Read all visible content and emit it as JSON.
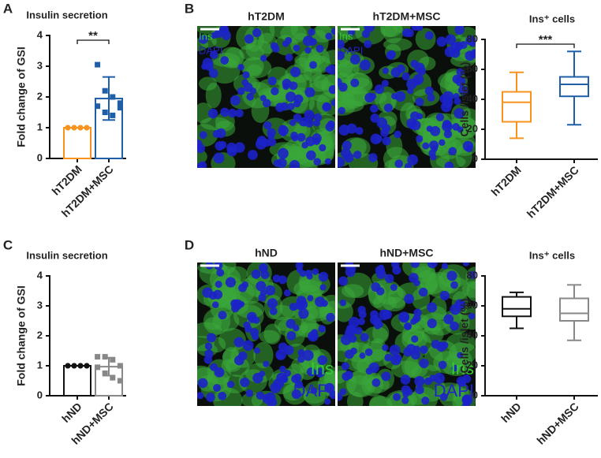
{
  "chart_data": [
    {
      "type": "bar",
      "panel": "A",
      "title": "Insulin secretion",
      "ylabel": "Fold change of GSI",
      "categories": [
        "hT2DM",
        "hT2DM+MSC"
      ],
      "values": [
        1,
        1.95
      ],
      "errors": [
        0,
        0.7
      ],
      "points": [
        [
          1,
          1,
          1,
          1,
          1,
          1,
          1,
          1
        ],
        [
          3.05,
          2.2,
          2.0,
          1.8,
          1.7,
          1.5,
          1.4,
          1.65
        ]
      ],
      "colors": [
        "#f7931e",
        "#1f5fa8"
      ],
      "markers": [
        "circle",
        "square"
      ],
      "ylim": [
        0,
        4
      ],
      "yticks": [
        0,
        1,
        2,
        3,
        4
      ],
      "significance": "**"
    },
    {
      "type": "box",
      "panel": "B",
      "title": "Ins⁺ cells",
      "ylabel": "Cells /islet (%)",
      "categories": [
        "hT2DM",
        "hT2DM+MSC"
      ],
      "boxes": [
        {
          "min": 14,
          "q1": 25,
          "median": 38,
          "q3": 45,
          "max": 58
        },
        {
          "min": 23,
          "q1": 42,
          "median": 50,
          "q3": 55,
          "max": 72
        }
      ],
      "colors": [
        "#f7931e",
        "#1f5fa8"
      ],
      "ylim": [
        0,
        80
      ],
      "yticks": [
        0,
        20,
        40,
        60,
        80
      ],
      "significance": "***"
    },
    {
      "type": "bar",
      "panel": "C",
      "title": "Insulin secretion",
      "ylabel": "Fold change of GSI",
      "categories": [
        "hND",
        "hND+MSC"
      ],
      "values": [
        1,
        0.97
      ],
      "errors": [
        0,
        0.3
      ],
      "points": [
        [
          1,
          1,
          1,
          1,
          1,
          1,
          1,
          1
        ],
        [
          1.3,
          1.3,
          1.2,
          1.0,
          0.95,
          0.75,
          0.6,
          0.5
        ]
      ],
      "colors": [
        "#111111",
        "#888888"
      ],
      "markers": [
        "circle",
        "square"
      ],
      "ylim": [
        0,
        4
      ],
      "yticks": [
        0,
        1,
        2,
        3,
        4
      ]
    },
    {
      "type": "box",
      "panel": "D",
      "title": "Ins⁺ cells",
      "ylabel": "Cells /islet (%)",
      "categories": [
        "hND",
        "hND+MSC"
      ],
      "boxes": [
        {
          "min": 45,
          "q1": 53,
          "median": 58,
          "q3": 66,
          "max": 69
        },
        {
          "min": 37,
          "q1": 50,
          "median": 55,
          "q3": 65,
          "max": 74
        }
      ],
      "colors": [
        "#111111",
        "#888888"
      ],
      "ylim": [
        0,
        80
      ],
      "yticks": [
        0,
        20,
        40,
        60,
        80
      ]
    }
  ],
  "images": [
    {
      "labels": [
        "hT2DM",
        "hT2DM+MSC"
      ],
      "stains": [
        "Ins",
        "DAPI"
      ]
    },
    {
      "labels": [
        "hND",
        "hND+MSC"
      ],
      "stains": [
        "Ins",
        "DAPI"
      ]
    }
  ]
}
